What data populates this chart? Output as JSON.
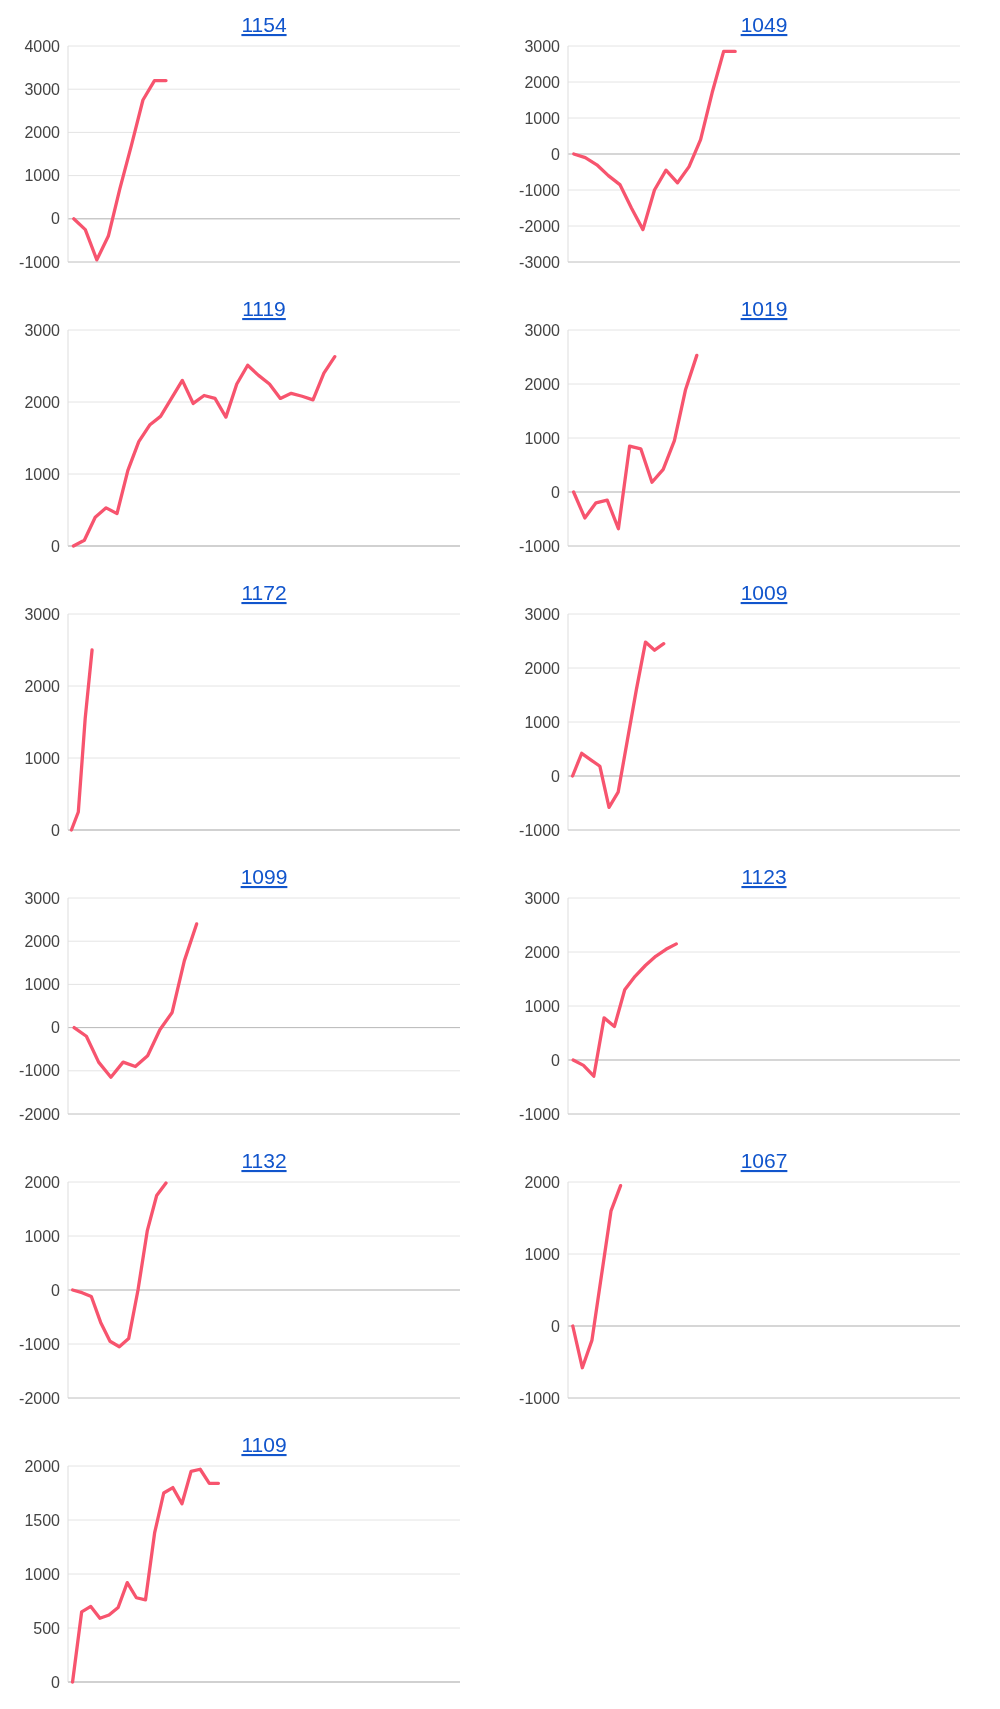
{
  "chart_data": [
    {
      "type": "line",
      "title": "1154",
      "categories": [
        null,
        null,
        null,
        null,
        null,
        null,
        null,
        null,
        null,
        null,
        null,
        null,
        null,
        null,
        null,
        null,
        null,
        null,
        null,
        null,
        null,
        null,
        null,
        null,
        null,
        null,
        null,
        null,
        null,
        null,
        null,
        null,
        null,
        null
      ],
      "series": [
        {
          "color": "#f7546e",
          "values": [
            0,
            -250,
            -950,
            -400,
            700,
            1700,
            2750,
            3200,
            3200,
            null,
            null,
            null,
            null,
            null,
            null,
            null,
            null,
            null,
            null,
            null,
            null,
            null,
            null,
            null,
            null,
            null,
            null,
            null,
            null,
            null,
            null,
            null,
            null,
            null
          ]
        }
      ],
      "ylim": [
        -1000,
        4000
      ],
      "yticks": [
        -1000,
        0,
        1000,
        2000,
        3000,
        4000
      ],
      "grid": "y",
      "tick_labels": "y"
    },
    {
      "type": "line",
      "title": "1049",
      "categories": [
        null,
        null,
        null,
        null,
        null,
        null,
        null,
        null,
        null,
        null,
        null,
        null,
        null,
        null,
        null,
        null,
        null,
        null,
        null,
        null,
        null,
        null,
        null,
        null,
        null,
        null,
        null,
        null,
        null,
        null,
        null,
        null,
        null,
        null
      ],
      "series": [
        {
          "color": "#f7546e",
          "values": [
            0,
            -100,
            -300,
            -600,
            -850,
            -1500,
            -2100,
            -1000,
            -450,
            -800,
            -350,
            400,
            1700,
            2850,
            2850,
            null,
            null,
            null,
            null,
            null,
            null,
            null,
            null,
            null,
            null,
            null,
            null,
            null,
            null,
            null,
            null,
            null,
            null,
            null
          ]
        }
      ],
      "ylim": [
        -3000,
        3000
      ],
      "yticks": [
        -3000,
        -2000,
        -1000,
        0,
        1000,
        2000,
        3000
      ],
      "grid": "y",
      "tick_labels": "y"
    },
    {
      "type": "line",
      "title": "1119",
      "categories": [
        null,
        null,
        null,
        null,
        null,
        null,
        null,
        null,
        null,
        null,
        null,
        null,
        null,
        null,
        null,
        null,
        null,
        null,
        null,
        null,
        null,
        null,
        null,
        null,
        null,
        null,
        null,
        null,
        null,
        null,
        null,
        null,
        null,
        null,
        null,
        null
      ],
      "series": [
        {
          "color": "#f7546e",
          "values": [
            0,
            80,
            400,
            530,
            450,
            1050,
            1450,
            1680,
            1800,
            2050,
            2300,
            1980,
            2090,
            2050,
            1790,
            2250,
            2510,
            2370,
            2250,
            2050,
            2120,
            2080,
            2030,
            2400,
            2630,
            null,
            null,
            null,
            null,
            null,
            null,
            null,
            null,
            null,
            null,
            null
          ]
        }
      ],
      "ylim": [
        0,
        3000
      ],
      "yticks": [
        0,
        1000,
        2000,
        3000
      ],
      "grid": "y",
      "tick_labels": "y"
    },
    {
      "type": "line",
      "title": "1019",
      "categories": [
        null,
        null,
        null,
        null,
        null,
        null,
        null,
        null,
        null,
        null,
        null,
        null,
        null,
        null,
        null,
        null,
        null,
        null,
        null,
        null,
        null,
        null,
        null,
        null,
        null,
        null,
        null,
        null,
        null,
        null,
        null,
        null,
        null,
        null,
        null
      ],
      "series": [
        {
          "color": "#f7546e",
          "values": [
            0,
            -480,
            -200,
            -150,
            -680,
            850,
            800,
            180,
            420,
            950,
            1900,
            2530,
            null,
            null,
            null,
            null,
            null,
            null,
            null,
            null,
            null,
            null,
            null,
            null,
            null,
            null,
            null,
            null,
            null,
            null,
            null,
            null,
            null,
            null,
            null
          ]
        }
      ],
      "ylim": [
        -1000,
        3000
      ],
      "yticks": [
        -1000,
        0,
        1000,
        2000,
        3000
      ],
      "grid": "y",
      "tick_labels": "y"
    },
    {
      "type": "line",
      "title": "1172",
      "categories": [
        null,
        null,
        null,
        null,
        null,
        null,
        null,
        null,
        null,
        null,
        null,
        null,
        null,
        null,
        null,
        null,
        null,
        null,
        null,
        null,
        null,
        null,
        null,
        null,
        null,
        null,
        null,
        null,
        null,
        null,
        null,
        null,
        null,
        null,
        null,
        null,
        null,
        null,
        null,
        null,
        null,
        null,
        null,
        null,
        null,
        null,
        null,
        null,
        null,
        null,
        null,
        null,
        null,
        null,
        null,
        null,
        null
      ],
      "series": [
        {
          "color": "#f7546e",
          "values": [
            0,
            250,
            1550,
            2500,
            null,
            null,
            null,
            null,
            null,
            null,
            null,
            null,
            null,
            null,
            null,
            null,
            null,
            null,
            null,
            null,
            null,
            null,
            null,
            null,
            null,
            null,
            null,
            null,
            null,
            null,
            null,
            null,
            null,
            null,
            null,
            null,
            null,
            null,
            null,
            null,
            null,
            null,
            null,
            null,
            null,
            null,
            null,
            null,
            null,
            null,
            null,
            null,
            null,
            null,
            null,
            null,
            null
          ]
        }
      ],
      "ylim": [
        0,
        3000
      ],
      "yticks": [
        0,
        1000,
        2000,
        3000
      ],
      "grid": "y",
      "tick_labels": "y"
    },
    {
      "type": "line",
      "title": "1009",
      "categories": [
        null,
        null,
        null,
        null,
        null,
        null,
        null,
        null,
        null,
        null,
        null,
        null,
        null,
        null,
        null,
        null,
        null,
        null,
        null,
        null,
        null,
        null,
        null,
        null,
        null,
        null,
        null,
        null,
        null,
        null,
        null,
        null,
        null,
        null,
        null,
        null,
        null,
        null,
        null,
        null,
        null,
        null,
        null
      ],
      "series": [
        {
          "color": "#f7546e",
          "values": [
            0,
            420,
            300,
            180,
            -580,
            -300,
            650,
            1600,
            2480,
            2330,
            2450,
            null,
            null,
            null,
            null,
            null,
            null,
            null,
            null,
            null,
            null,
            null,
            null,
            null,
            null,
            null,
            null,
            null,
            null,
            null,
            null,
            null,
            null,
            null,
            null,
            null,
            null,
            null,
            null,
            null,
            null,
            null,
            null
          ]
        }
      ],
      "ylim": [
        -1000,
        3000
      ],
      "yticks": [
        -1000,
        0,
        1000,
        2000,
        3000
      ],
      "grid": "y",
      "tick_labels": "y"
    },
    {
      "type": "line",
      "title": "1099",
      "categories": [
        null,
        null,
        null,
        null,
        null,
        null,
        null,
        null,
        null,
        null,
        null,
        null,
        null,
        null,
        null,
        null,
        null,
        null,
        null,
        null,
        null,
        null,
        null,
        null,
        null,
        null,
        null,
        null,
        null,
        null,
        null,
        null
      ],
      "series": [
        {
          "color": "#f7546e",
          "values": [
            0,
            -200,
            -800,
            -1150,
            -800,
            -900,
            -650,
            -50,
            350,
            1550,
            2400,
            null,
            null,
            null,
            null,
            null,
            null,
            null,
            null,
            null,
            null,
            null,
            null,
            null,
            null,
            null,
            null,
            null,
            null,
            null,
            null,
            null
          ]
        }
      ],
      "ylim": [
        -2000,
        3000
      ],
      "yticks": [
        -2000,
        -1000,
        0,
        1000,
        2000,
        3000
      ],
      "grid": "y",
      "tick_labels": "y"
    },
    {
      "type": "line",
      "title": "1123",
      "categories": [
        null,
        null,
        null,
        null,
        null,
        null,
        null,
        null,
        null,
        null,
        null,
        null,
        null,
        null,
        null,
        null,
        null,
        null,
        null,
        null,
        null,
        null,
        null,
        null,
        null,
        null,
        null,
        null,
        null,
        null,
        null,
        null,
        null,
        null,
        null,
        null,
        null,
        null
      ],
      "series": [
        {
          "color": "#f7546e",
          "values": [
            0,
            -100,
            -300,
            780,
            620,
            1300,
            1550,
            1750,
            1920,
            2050,
            2150,
            null,
            null,
            null,
            null,
            null,
            null,
            null,
            null,
            null,
            null,
            null,
            null,
            null,
            null,
            null,
            null,
            null,
            null,
            null,
            null,
            null,
            null,
            null,
            null,
            null,
            null,
            null
          ]
        }
      ],
      "ylim": [
        -1000,
        3000
      ],
      "yticks": [
        -1000,
        0,
        1000,
        2000,
        3000
      ],
      "grid": "y",
      "tick_labels": "y"
    },
    {
      "type": "line",
      "title": "1132",
      "categories": [
        null,
        null,
        null,
        null,
        null,
        null,
        null,
        null,
        null,
        null,
        null,
        null,
        null,
        null,
        null,
        null,
        null,
        null,
        null,
        null,
        null,
        null,
        null,
        null,
        null,
        null,
        null,
        null,
        null,
        null,
        null,
        null,
        null,
        null,
        null,
        null,
        null,
        null,
        null,
        null,
        null,
        null
      ],
      "series": [
        {
          "color": "#f7546e",
          "values": [
            0,
            -50,
            -120,
            -600,
            -950,
            -1050,
            -900,
            0,
            1100,
            1750,
            1980,
            null,
            null,
            null,
            null,
            null,
            null,
            null,
            null,
            null,
            null,
            null,
            null,
            null,
            null,
            null,
            null,
            null,
            null,
            null,
            null,
            null,
            null,
            null,
            null,
            null,
            null,
            null,
            null,
            null,
            null,
            null
          ]
        }
      ],
      "ylim": [
        -2000,
        2000
      ],
      "yticks": [
        -2000,
        -1000,
        0,
        1000,
        2000
      ],
      "grid": "y",
      "tick_labels": "y"
    },
    {
      "type": "line",
      "title": "1067",
      "categories": [
        null,
        null,
        null,
        null,
        null,
        null,
        null,
        null,
        null,
        null,
        null,
        null,
        null,
        null,
        null,
        null,
        null,
        null,
        null,
        null,
        null,
        null,
        null,
        null,
        null,
        null,
        null,
        null,
        null,
        null,
        null,
        null,
        null,
        null,
        null,
        null,
        null,
        null,
        null,
        null,
        null
      ],
      "series": [
        {
          "color": "#f7546e",
          "values": [
            0,
            -580,
            -200,
            700,
            1600,
            1950,
            null,
            null,
            null,
            null,
            null,
            null,
            null,
            null,
            null,
            null,
            null,
            null,
            null,
            null,
            null,
            null,
            null,
            null,
            null,
            null,
            null,
            null,
            null,
            null,
            null,
            null,
            null,
            null,
            null,
            null,
            null,
            null,
            null,
            null,
            null
          ]
        }
      ],
      "ylim": [
        -1000,
        2000
      ],
      "yticks": [
        -1000,
        0,
        1000,
        2000
      ],
      "grid": "y",
      "tick_labels": "y"
    },
    {
      "type": "line",
      "title": "1109",
      "categories": [
        null,
        null,
        null,
        null,
        null,
        null,
        null,
        null,
        null,
        null,
        null,
        null,
        null,
        null,
        null,
        null,
        null,
        null,
        null,
        null,
        null,
        null,
        null,
        null,
        null,
        null,
        null,
        null,
        null,
        null,
        null,
        null,
        null,
        null,
        null,
        null,
        null,
        null,
        null,
        null,
        null,
        null,
        null
      ],
      "series": [
        {
          "color": "#f7546e",
          "values": [
            0,
            650,
            700,
            590,
            620,
            690,
            920,
            780,
            760,
            1380,
            1750,
            1800,
            1650,
            1950,
            1970,
            1840,
            1840,
            null,
            null,
            null,
            null,
            null,
            null,
            null,
            null,
            null,
            null,
            null,
            null,
            null,
            null,
            null,
            null,
            null,
            null,
            null,
            null,
            null,
            null,
            null,
            null,
            null,
            null
          ]
        }
      ],
      "ylim": [
        0,
        2000
      ],
      "yticks": [
        0,
        500,
        1000,
        1500,
        2000
      ],
      "grid": "y",
      "tick_labels": "y"
    }
  ]
}
